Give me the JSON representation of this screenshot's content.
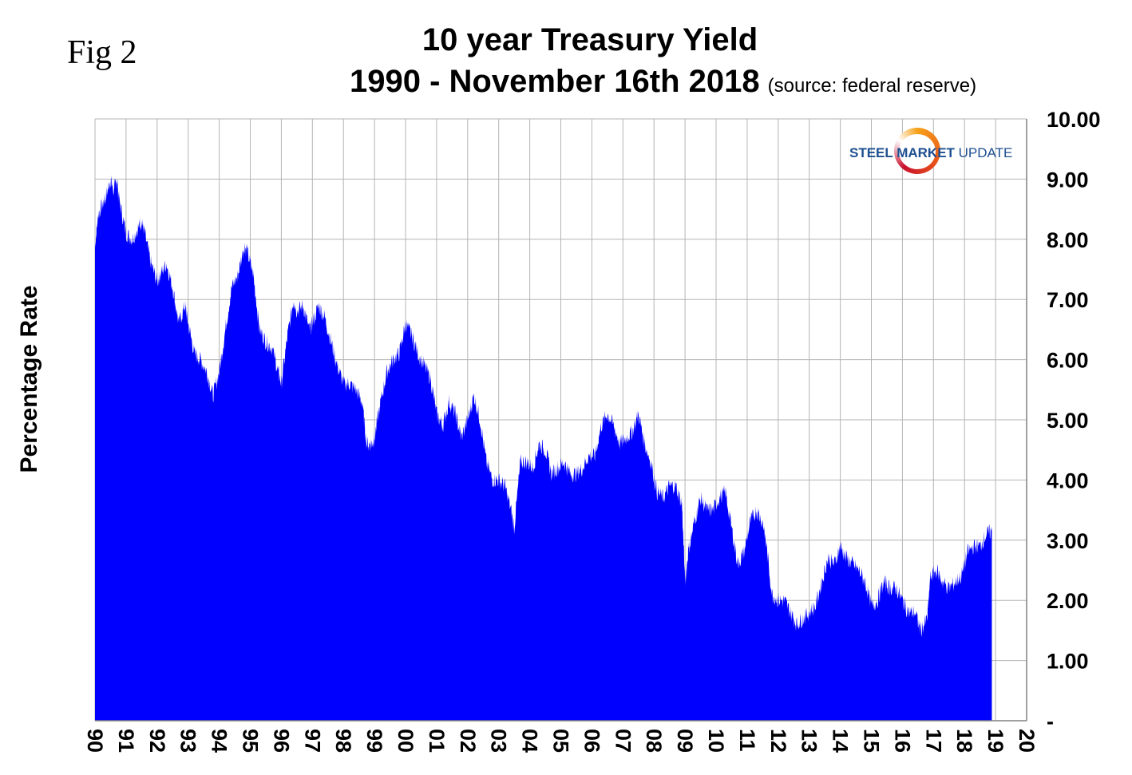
{
  "figure": {
    "fig_label": "Fig 2",
    "title_line1": "10 year Treasury Yield",
    "title_line2": "1990 - November 16th 2018",
    "source_note": "(source: federal reserve)",
    "logo_text_part1": "STEEL MARKET",
    "logo_text_part2": "UPDATE"
  },
  "colors": {
    "area": "#0000ff",
    "grid": "#b4b4b4",
    "axis": "#808080"
  },
  "chart_data": {
    "type": "area",
    "title": "10 year Treasury Yield",
    "subtitle": "1990 - November 16th 2018",
    "ylabel": "Percentage Rate",
    "xlabel": "",
    "xlim": [
      1990,
      2020
    ],
    "ylim": [
      0,
      10
    ],
    "y_axis_side": "right",
    "grid": true,
    "y_ticks": [
      0,
      1,
      2,
      3,
      4,
      5,
      6,
      7,
      8,
      9,
      10
    ],
    "y_tick_labels": [
      "-",
      "1.00",
      "2.00",
      "3.00",
      "4.00",
      "5.00",
      "6.00",
      "7.00",
      "8.00",
      "9.00",
      "10.00"
    ],
    "x_ticks": [
      1990,
      1991,
      1992,
      1993,
      1994,
      1995,
      1996,
      1997,
      1998,
      1999,
      2000,
      2001,
      2002,
      2003,
      2004,
      2005,
      2006,
      2007,
      2008,
      2009,
      2010,
      2011,
      2012,
      2013,
      2014,
      2015,
      2016,
      2017,
      2018,
      2019,
      2020
    ],
    "x_tick_labels": [
      "90",
      "91",
      "92",
      "93",
      "94",
      "95",
      "96",
      "97",
      "98",
      "99",
      "00",
      "01",
      "02",
      "03",
      "04",
      "05",
      "06",
      "07",
      "08",
      "09",
      "10",
      "11",
      "12",
      "13",
      "14",
      "15",
      "16",
      "17",
      "18",
      "19",
      "20"
    ],
    "series": [
      {
        "x": [
          1990.0,
          1990.1,
          1990.25,
          1990.35,
          1990.5,
          1990.6,
          1990.7,
          1990.8,
          1991.0,
          1991.2,
          1991.4,
          1991.5,
          1991.6,
          1991.8,
          1992.0,
          1992.1,
          1992.3,
          1992.5,
          1992.7,
          1992.9,
          1993.0,
          1993.2,
          1993.4,
          1993.6,
          1993.8,
          1994.0,
          1994.2,
          1994.4,
          1994.6,
          1994.8,
          1994.9,
          1995.1,
          1995.3,
          1995.5,
          1995.7,
          1995.9,
          1996.0,
          1996.2,
          1996.4,
          1996.5,
          1996.7,
          1996.9,
          1997.0,
          1997.2,
          1997.4,
          1997.6,
          1997.8,
          1998.0,
          1998.2,
          1998.4,
          1998.6,
          1998.75,
          1998.9,
          1999.0,
          1999.2,
          1999.4,
          1999.6,
          1999.8,
          2000.0,
          2000.2,
          2000.4,
          2000.6,
          2000.8,
          2001.0,
          2001.2,
          2001.4,
          2001.6,
          2001.8,
          2002.0,
          2002.2,
          2002.4,
          2002.6,
          2002.8,
          2003.0,
          2003.2,
          2003.4,
          2003.5,
          2003.7,
          2003.9,
          2004.1,
          2004.3,
          2004.5,
          2004.7,
          2004.9,
          2005.1,
          2005.3,
          2005.5,
          2005.7,
          2005.9,
          2006.1,
          2006.3,
          2006.5,
          2006.7,
          2006.9,
          2007.1,
          2007.3,
          2007.5,
          2007.7,
          2007.9,
          2008.1,
          2008.3,
          2008.5,
          2008.7,
          2008.9,
          2009.0,
          2009.1,
          2009.3,
          2009.5,
          2009.7,
          2009.9,
          2010.1,
          2010.3,
          2010.5,
          2010.7,
          2010.9,
          2011.1,
          2011.3,
          2011.5,
          2011.6,
          2011.8,
          2012.0,
          2012.2,
          2012.4,
          2012.6,
          2012.8,
          2013.0,
          2013.2,
          2013.4,
          2013.6,
          2013.8,
          2014.0,
          2014.2,
          2014.4,
          2014.6,
          2014.8,
          2015.0,
          2015.2,
          2015.4,
          2015.6,
          2015.8,
          2016.0,
          2016.2,
          2016.4,
          2016.6,
          2016.8,
          2016.9,
          2017.1,
          2017.3,
          2017.5,
          2017.7,
          2017.9,
          2018.1,
          2018.3,
          2018.5,
          2018.7,
          2018.88
        ],
        "y": [
          7.9,
          8.4,
          8.6,
          8.7,
          9.0,
          8.8,
          9.0,
          8.6,
          8.1,
          8.0,
          8.2,
          8.3,
          8.1,
          7.6,
          7.3,
          7.4,
          7.6,
          7.2,
          6.6,
          6.9,
          6.6,
          6.1,
          6.0,
          5.8,
          5.4,
          5.8,
          6.5,
          7.2,
          7.4,
          7.9,
          7.8,
          7.4,
          6.5,
          6.3,
          6.2,
          5.8,
          5.6,
          6.4,
          7.0,
          6.8,
          6.9,
          6.5,
          6.6,
          6.9,
          6.7,
          6.3,
          5.9,
          5.6,
          5.6,
          5.5,
          5.3,
          4.6,
          4.6,
          4.7,
          5.3,
          5.8,
          6.0,
          6.1,
          6.6,
          6.4,
          6.1,
          5.9,
          5.7,
          5.1,
          4.9,
          5.3,
          5.1,
          4.7,
          5.0,
          5.4,
          5.0,
          4.3,
          4.0,
          4.0,
          3.9,
          3.5,
          3.2,
          4.3,
          4.3,
          4.2,
          4.6,
          4.5,
          4.1,
          4.2,
          4.3,
          4.1,
          4.1,
          4.2,
          4.4,
          4.4,
          4.9,
          5.1,
          4.9,
          4.6,
          4.7,
          4.8,
          5.1,
          4.6,
          4.3,
          3.8,
          3.7,
          3.9,
          3.9,
          3.6,
          2.3,
          2.8,
          3.3,
          3.7,
          3.5,
          3.5,
          3.7,
          3.8,
          3.2,
          2.6,
          2.8,
          3.3,
          3.5,
          3.3,
          3.0,
          2.1,
          2.0,
          2.0,
          1.8,
          1.6,
          1.7,
          1.8,
          1.9,
          2.3,
          2.7,
          2.6,
          2.9,
          2.7,
          2.6,
          2.5,
          2.3,
          1.9,
          2.0,
          2.3,
          2.2,
          2.2,
          2.0,
          1.8,
          1.8,
          1.5,
          1.7,
          2.4,
          2.5,
          2.3,
          2.2,
          2.3,
          2.4,
          2.8,
          2.9,
          2.9,
          3.1,
          3.15
        ]
      }
    ]
  }
}
